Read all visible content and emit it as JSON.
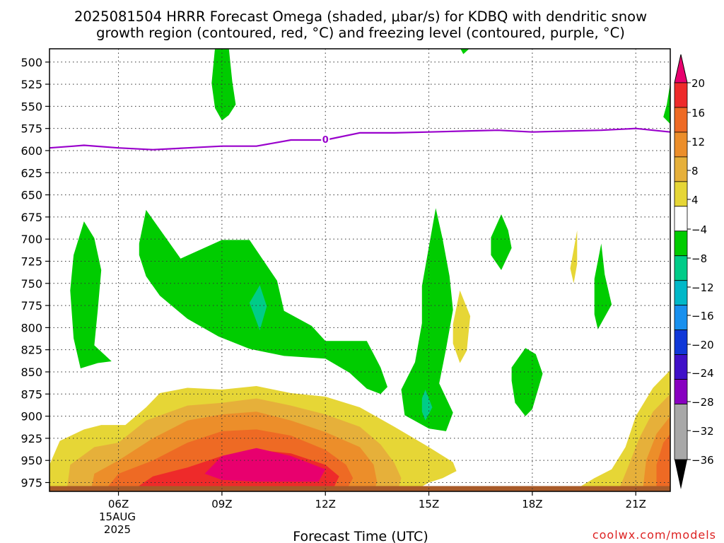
{
  "chart_data": {
    "type": "heatmap",
    "title_line1": "2025081504 HRRR Forecast Omega (shaded, μbar/s) for KDBQ with dendritic snow",
    "title_line2": "growth region (contoured, red, °C) and freezing level (contoured, purple, °C)",
    "xlabel": "Forecast Time (UTC)",
    "watermark": "coolwx.com/models",
    "x_ticks": [
      {
        "hour": 6,
        "label": "06Z"
      },
      {
        "hour": 9,
        "label": "09Z"
      },
      {
        "hour": 12,
        "label": "12Z"
      },
      {
        "hour": 15,
        "label": "15Z"
      },
      {
        "hour": 18,
        "label": "18Z"
      },
      {
        "hour": 21,
        "label": "21Z"
      }
    ],
    "date_label": [
      "15AUG",
      "2025"
    ],
    "xlim_hours": [
      4,
      22
    ],
    "y_scale": "pressure (inverted)",
    "y_ticks": [
      500,
      525,
      550,
      575,
      600,
      625,
      650,
      675,
      700,
      725,
      750,
      775,
      800,
      825,
      850,
      875,
      900,
      925,
      950,
      975
    ],
    "ylim_hpa": [
      485,
      985
    ],
    "grid": true,
    "colorbar": {
      "labels": [
        "20",
        "16",
        "12",
        "8",
        "4",
        "−4",
        "−8",
        "−12",
        "−16",
        "−20",
        "−24",
        "−28",
        "−32",
        "−36"
      ],
      "colors": [
        "#e8006e",
        "#ee2a2a",
        "#ee6a24",
        "#ec8e2a",
        "#e6b03a",
        "#e6d636",
        "#ffffff",
        "#00cc00",
        "#00cc88",
        "#00b8c8",
        "#1890ee",
        "#1038d8",
        "#4010c8",
        "#8800c0",
        "#a8a8a8"
      ]
    },
    "freezing_level": {
      "label": "0",
      "color": "#9900cc",
      "points_hpa": [
        [
          4,
          597
        ],
        [
          4.7,
          595
        ],
        [
          5,
          594
        ],
        [
          6,
          597
        ],
        [
          7,
          599
        ],
        [
          8,
          597
        ],
        [
          9,
          595
        ],
        [
          10,
          595
        ],
        [
          11,
          588
        ],
        [
          12,
          588
        ],
        [
          13,
          580
        ],
        [
          14,
          580
        ],
        [
          15,
          579
        ],
        [
          16,
          578
        ],
        [
          17,
          577
        ],
        [
          18,
          579
        ],
        [
          19,
          578
        ],
        [
          20,
          577
        ],
        [
          21,
          575
        ],
        [
          22,
          579
        ]
      ]
    },
    "omega_regions": [
      {
        "name": "large-upward-region-center",
        "value": -8,
        "points_hpa": [
          [
            6.6,
            705
          ],
          [
            6.8,
            667
          ],
          [
            7.8,
            722
          ],
          [
            9,
            701
          ],
          [
            9.8,
            701
          ],
          [
            10.6,
            747
          ],
          [
            10.8,
            781
          ],
          [
            11.6,
            798
          ],
          [
            12,
            815
          ],
          [
            13.2,
            815
          ],
          [
            13.6,
            845
          ],
          [
            13.8,
            867
          ],
          [
            13.6,
            875
          ],
          [
            13.2,
            869
          ],
          [
            12.7,
            851
          ],
          [
            12,
            835
          ],
          [
            10.8,
            832
          ],
          [
            9.8,
            824
          ],
          [
            8.9,
            810
          ],
          [
            8.0,
            790
          ],
          [
            7.2,
            764
          ],
          [
            6.8,
            742
          ],
          [
            6.6,
            718
          ]
        ]
      },
      {
        "name": "left-upward-region",
        "value": -8,
        "points_hpa": [
          [
            4.7,
            718
          ],
          [
            5.0,
            680
          ],
          [
            5.3,
            699
          ],
          [
            5.5,
            735
          ],
          [
            5.4,
            780
          ],
          [
            5.3,
            820
          ],
          [
            5.8,
            838
          ],
          [
            5.4,
            840
          ],
          [
            4.9,
            846
          ],
          [
            4.7,
            812
          ],
          [
            4.6,
            758
          ]
        ]
      },
      {
        "name": "upper-upward-region",
        "value": -8,
        "points_hpa": [
          [
            8.8,
            484
          ],
          [
            9.2,
            484
          ],
          [
            9.3,
            522
          ],
          [
            9.4,
            548
          ],
          [
            9.2,
            560
          ],
          [
            9.0,
            566
          ],
          [
            8.8,
            552
          ],
          [
            8.7,
            524
          ]
        ]
      },
      {
        "name": "upward-region-15z",
        "value": -8,
        "points_hpa": [
          [
            14.8,
            753
          ],
          [
            15.2,
            665
          ],
          [
            15.4,
            700
          ],
          [
            15.6,
            742
          ],
          [
            15.7,
            780
          ],
          [
            15.5,
            824
          ],
          [
            15.3,
            863
          ],
          [
            15.7,
            896
          ],
          [
            15.5,
            917
          ],
          [
            15.0,
            914
          ],
          [
            14.3,
            899
          ],
          [
            14.2,
            870
          ],
          [
            14.6,
            839
          ],
          [
            14.8,
            795
          ]
        ]
      },
      {
        "name": "upward-region-17z",
        "value": -8,
        "points_hpa": [
          [
            16.8,
            698
          ],
          [
            17.1,
            672
          ],
          [
            17.3,
            690
          ],
          [
            17.4,
            710
          ],
          [
            17.1,
            735
          ],
          [
            16.8,
            718
          ]
        ]
      },
      {
        "name": "upward-region-18z",
        "value": -8,
        "points_hpa": [
          [
            17.4,
            845
          ],
          [
            17.8,
            823
          ],
          [
            18.1,
            830
          ],
          [
            18.3,
            852
          ],
          [
            18.0,
            892
          ],
          [
            17.8,
            900
          ],
          [
            17.5,
            885
          ],
          [
            17.4,
            860
          ]
        ]
      },
      {
        "name": "upward-region-20z",
        "value": -8,
        "points_hpa": [
          [
            19.8,
            745
          ],
          [
            20.0,
            705
          ],
          [
            20.1,
            740
          ],
          [
            20.3,
            774
          ],
          [
            19.9,
            802
          ],
          [
            19.8,
            785
          ]
        ]
      },
      {
        "name": "right-edge-upward-region",
        "value": -8,
        "points_hpa": [
          [
            22,
            524
          ],
          [
            22,
            570
          ],
          [
            21.8,
            562
          ],
          [
            21.9,
            548
          ]
        ]
      },
      {
        "name": "upward-region-top-16z",
        "value": -8,
        "points_hpa": [
          [
            15.9,
            484
          ],
          [
            16.2,
            484
          ],
          [
            16.0,
            491
          ]
        ]
      },
      {
        "name": "upward-cyan-core-10z",
        "value": -12,
        "points_hpa": [
          [
            9.8,
            772
          ],
          [
            10.1,
            752
          ],
          [
            10.3,
            776
          ],
          [
            10.1,
            803
          ]
        ]
      },
      {
        "name": "upward-cyan-core-15z",
        "value": -12,
        "points_hpa": [
          [
            14.8,
            880
          ],
          [
            14.9,
            870
          ],
          [
            15.1,
            890
          ],
          [
            14.9,
            905
          ],
          [
            14.8,
            895
          ]
        ]
      },
      {
        "name": "downward-region-16z",
        "value": 4,
        "points_hpa": [
          [
            15.7,
            796
          ],
          [
            15.9,
            758
          ],
          [
            16.2,
            787
          ],
          [
            16.1,
            826
          ],
          [
            15.9,
            840
          ],
          [
            15.7,
            818
          ]
        ]
      },
      {
        "name": "downward-region-19z",
        "value": 4,
        "points_hpa": [
          [
            19.2,
            712
          ],
          [
            19.3,
            690
          ],
          [
            19.3,
            728
          ],
          [
            19.2,
            750
          ],
          [
            19.1,
            733
          ]
        ]
      },
      {
        "name": "low-level-downward-4",
        "value": 4,
        "points_hpa": [
          [
            4,
            984
          ],
          [
            4,
            955
          ],
          [
            4.3,
            928
          ],
          [
            5,
            915
          ],
          [
            5.5,
            910
          ],
          [
            6.2,
            910
          ],
          [
            6.8,
            890
          ],
          [
            7.2,
            874
          ],
          [
            8.0,
            868
          ],
          [
            9.0,
            870
          ],
          [
            10.0,
            866
          ],
          [
            11.0,
            874
          ],
          [
            12.0,
            878
          ],
          [
            13.0,
            890
          ],
          [
            14.0,
            912
          ],
          [
            15.0,
            935
          ],
          [
            15.7,
            952
          ],
          [
            15.8,
            962
          ],
          [
            15.4,
            970
          ],
          [
            15.0,
            975
          ],
          [
            14.6,
            984
          ]
        ]
      },
      {
        "name": "low-level-downward-8",
        "value": 8,
        "points_hpa": [
          [
            4.5,
            984
          ],
          [
            4.6,
            955
          ],
          [
            5.3,
            935
          ],
          [
            6.0,
            930
          ],
          [
            6.8,
            905
          ],
          [
            8.0,
            888
          ],
          [
            9.0,
            885
          ],
          [
            10.0,
            880
          ],
          [
            11.0,
            888
          ],
          [
            12.0,
            898
          ],
          [
            13.0,
            912
          ],
          [
            13.6,
            932
          ],
          [
            14.0,
            953
          ],
          [
            14.2,
            970
          ],
          [
            14.1,
            984
          ]
        ]
      },
      {
        "name": "low-level-downward-12",
        "value": 12,
        "points_hpa": [
          [
            5.2,
            984
          ],
          [
            5.3,
            965
          ],
          [
            6.0,
            950
          ],
          [
            7.0,
            925
          ],
          [
            8.0,
            905
          ],
          [
            9.0,
            898
          ],
          [
            10.0,
            895
          ],
          [
            11.0,
            905
          ],
          [
            12.0,
            918
          ],
          [
            13.0,
            935
          ],
          [
            13.4,
            955
          ],
          [
            13.5,
            975
          ],
          [
            13.4,
            984
          ]
        ]
      },
      {
        "name": "low-level-downward-16",
        "value": 16,
        "points_hpa": [
          [
            5.6,
            984
          ],
          [
            6.0,
            965
          ],
          [
            7.0,
            950
          ],
          [
            8.0,
            930
          ],
          [
            9.0,
            917
          ],
          [
            10.0,
            915
          ],
          [
            11.0,
            922
          ],
          [
            12.0,
            938
          ],
          [
            12.6,
            955
          ],
          [
            12.8,
            970
          ],
          [
            12.6,
            984
          ]
        ]
      },
      {
        "name": "low-level-downward-20",
        "value": 20,
        "points_hpa": [
          [
            6.4,
            984
          ],
          [
            7.0,
            968
          ],
          [
            8.0,
            958
          ],
          [
            9.0,
            945
          ],
          [
            10.0,
            938
          ],
          [
            11.0,
            942
          ],
          [
            12.0,
            955
          ],
          [
            12.4,
            968
          ],
          [
            12.2,
            984
          ]
        ]
      },
      {
        "name": "low-level-downward-20-max",
        "value": 24,
        "points_hpa": [
          [
            8.5,
            965
          ],
          [
            9.0,
            945
          ],
          [
            10.0,
            936
          ],
          [
            11.0,
            945
          ],
          [
            12.0,
            960
          ],
          [
            11.8,
            974
          ],
          [
            10.0,
            974
          ],
          [
            9.0,
            972
          ]
        ]
      },
      {
        "name": "downward-right-edge-4",
        "value": 4,
        "points_hpa": [
          [
            19.2,
            984
          ],
          [
            19.8,
            970
          ],
          [
            20.3,
            960
          ],
          [
            20.7,
            935
          ],
          [
            21.0,
            900
          ],
          [
            21.5,
            868
          ],
          [
            22,
            848
          ],
          [
            22,
            984
          ]
        ]
      },
      {
        "name": "downward-right-edge-8",
        "value": 8,
        "points_hpa": [
          [
            20.5,
            984
          ],
          [
            20.8,
            955
          ],
          [
            21.1,
            925
          ],
          [
            21.5,
            895
          ],
          [
            22,
            875
          ],
          [
            22,
            984
          ]
        ]
      },
      {
        "name": "downward-right-edge-12",
        "value": 12,
        "points_hpa": [
          [
            21.2,
            984
          ],
          [
            21.3,
            950
          ],
          [
            21.6,
            920
          ],
          [
            22,
            900
          ],
          [
            22,
            984
          ]
        ]
      },
      {
        "name": "downward-right-edge-16",
        "value": 16,
        "points_hpa": [
          [
            21.6,
            984
          ],
          [
            21.6,
            955
          ],
          [
            21.8,
            930
          ],
          [
            22,
            920
          ],
          [
            22,
            984
          ]
        ]
      }
    ],
    "ground_band": {
      "from_hpa": 979,
      "to_hpa": 985,
      "color": "#a85a28"
    }
  }
}
